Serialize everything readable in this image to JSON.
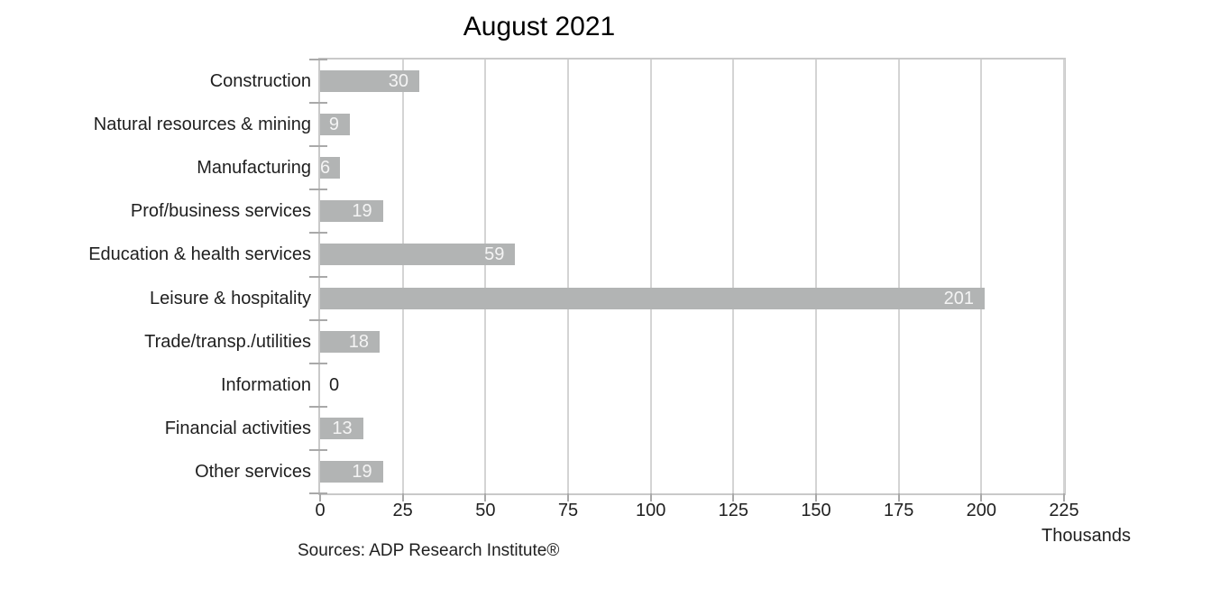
{
  "chart": {
    "title": "August 2021",
    "axis_unit_label": "Thousands",
    "source_note": "Sources: ADP Research Institute®"
  },
  "chart_data": {
    "type": "bar",
    "orientation": "horizontal",
    "title": "August 2021",
    "categories": [
      "Construction",
      "Natural resources & mining",
      "Manufacturing",
      "Prof/business services",
      "Education & health services",
      "Leisure & hospitality",
      "Trade/transp./utilities",
      "Information",
      "Financial activities",
      "Other services"
    ],
    "values": [
      30,
      9,
      6,
      19,
      59,
      201,
      18,
      0,
      13,
      19
    ],
    "xlabel": "Thousands",
    "ylabel": "",
    "xlim": [
      0,
      225
    ],
    "xticks": [
      0,
      25,
      50,
      75,
      100,
      125,
      150,
      175,
      200,
      225
    ],
    "grid": true,
    "legend": false,
    "bar_color": "#b2b4b4",
    "value_label_color_inside": "#f4f4f4",
    "value_label_color_zero": "#1f1f1f",
    "gridline_color": "#d4d4d4",
    "source": "Sources: ADP Research Institute®"
  }
}
